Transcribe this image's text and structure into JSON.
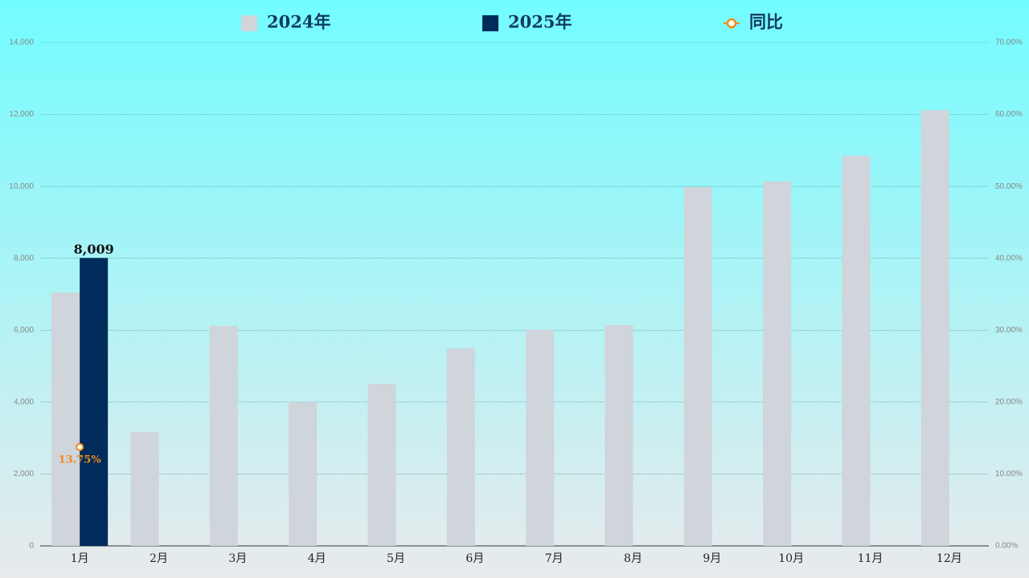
{
  "chart_data": {
    "type": "bar",
    "categories": [
      "1月",
      "2月",
      "3月",
      "4月",
      "5月",
      "6月",
      "7月",
      "8月",
      "9月",
      "10月",
      "11月",
      "12月"
    ],
    "series": [
      {
        "name": "2024年",
        "type": "bar",
        "color": "#d0d4db",
        "values": [
          7041,
          3170,
          6120,
          4000,
          4510,
          5490,
          6010,
          6140,
          9980,
          10140,
          10850,
          12120
        ]
      },
      {
        "name": "2025年",
        "type": "bar",
        "color": "#002b5a",
        "values": [
          8009,
          null,
          null,
          null,
          null,
          null,
          null,
          null,
          null,
          null,
          null,
          null
        ],
        "value_labels": [
          "8,009",
          null,
          null,
          null,
          null,
          null,
          null,
          null,
          null,
          null,
          null,
          null
        ]
      },
      {
        "name": "同比",
        "type": "line",
        "axis": "y2",
        "color": "#f08a1c",
        "values": [
          13.75,
          null,
          null,
          null,
          null,
          null,
          null,
          null,
          null,
          null,
          null,
          null
        ],
        "value_labels": [
          "13.75%",
          null,
          null,
          null,
          null,
          null,
          null,
          null,
          null,
          null,
          null,
          null
        ]
      }
    ],
    "ylim": [
      0,
      14000
    ],
    "yticks": [
      0,
      {
        "value": 2000,
        "label": "2,000"
      },
      {
        "value": 4000,
        "label": "4,000"
      },
      {
        "value": 6000,
        "label": "6,000"
      },
      {
        "value": 8000,
        "label": "8,000"
      },
      {
        "value": 10000,
        "label": "10,000"
      },
      {
        "value": 12000,
        "label": "12,000"
      },
      {
        "value": 14000,
        "label": "14,000"
      }
    ],
    "y2lim": [
      0,
      70
    ],
    "y2ticks": [
      {
        "value": 0,
        "label": "0.00%"
      },
      {
        "value": 10,
        "label": "10.00%"
      },
      {
        "value": 20,
        "label": "20.00%"
      },
      {
        "value": 30,
        "label": "30.00%"
      },
      {
        "value": 40,
        "label": "40.00%"
      },
      {
        "value": 50,
        "label": "50.00%"
      },
      {
        "value": 60,
        "label": "60.00%"
      },
      {
        "value": 70,
        "label": "70.00%"
      }
    ],
    "grid": true,
    "legend": "top"
  }
}
